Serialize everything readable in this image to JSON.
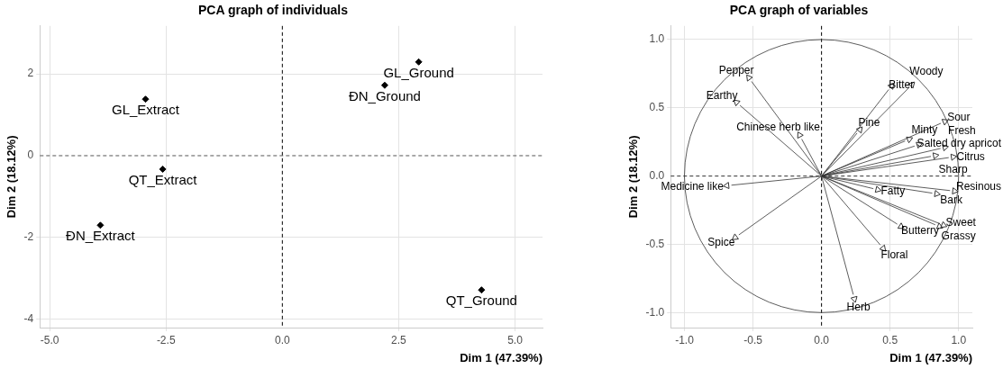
{
  "chart_data": [
    {
      "type": "scatter",
      "title": "PCA graph of individuals",
      "xlabel": "Dim 1 (47.39%)",
      "ylabel": "Dim 2 (18.12%)",
      "series": [
        {
          "color": "#000000",
          "x": [
            2.93,
            2.2,
            -2.94,
            -2.57,
            -3.91,
            4.28
          ],
          "values": [
            2.29,
            1.72,
            1.38,
            -0.33,
            -1.7,
            -3.28
          ]
        }
      ],
      "annotations": [
        {
          "text": "GL_Ground",
          "x": 2.93,
          "y": 2.29
        },
        {
          "text": "ĐN_Ground",
          "x": 2.2,
          "y": 1.72
        },
        {
          "text": "GL_Extract",
          "x": -2.94,
          "y": 1.38
        },
        {
          "text": "QT_Extract",
          "x": -2.57,
          "y": -0.33
        },
        {
          "text": "ĐN_Extract",
          "x": -3.91,
          "y": -1.7
        },
        {
          "text": "QT_Ground",
          "x": 4.28,
          "y": -3.28
        }
      ],
      "xlim": [
        -5.21,
        5.59
      ],
      "ylim": [
        -4.2,
        3.17
      ],
      "xticks": [
        {
          "value": -5,
          "label": "-5.0"
        },
        {
          "value": -2.5,
          "label": "-2.5"
        },
        {
          "value": 0,
          "label": "0.0"
        },
        {
          "value": 2.5,
          "label": "2.5"
        },
        {
          "value": 5,
          "label": "5.0"
        }
      ],
      "yticks": [
        -4,
        -2,
        0,
        2
      ],
      "ref_lines": [
        {
          "axis": "x",
          "value": 0,
          "line_style": "dashed",
          "color": "#000000"
        },
        {
          "axis": "y",
          "value": 0,
          "line_style": "dashed",
          "color": "#555555"
        }
      ],
      "grid": true,
      "marker": "diamond",
      "legend": false
    },
    {
      "type": "scatter",
      "title": "PCA graph of variables",
      "xlabel": "Dim 1 (47.39%)",
      "ylabel": "Dim 2 (18.12%)",
      "series": [
        {
          "color": "#333333",
          "x": [
            -0.53,
            -0.62,
            -0.16,
            -0.69,
            0.66,
            0.51,
            0.28,
            0.64,
            0.9,
            0.71,
            0.9,
            0.83,
            0.96,
            0.41,
            0.97,
            0.84,
            0.58,
            0.89,
            0.86,
            0.45,
            0.24,
            -0.63
          ],
          "values": [
            0.72,
            0.54,
            0.3,
            -0.07,
            0.67,
            0.66,
            0.34,
            0.27,
            0.4,
            0.23,
            0.21,
            0.15,
            0.14,
            -0.1,
            -0.11,
            -0.13,
            -0.37,
            -0.36,
            -0.37,
            -0.53,
            -0.9,
            -0.45
          ]
        }
      ],
      "annotations": [
        {
          "text": "Pepper",
          "x": -0.53,
          "y": 0.72
        },
        {
          "text": "Earthy",
          "x": -0.62,
          "y": 0.54
        },
        {
          "text": "Chinese herb like",
          "x": -0.16,
          "y": 0.3
        },
        {
          "text": "Medicine like",
          "x": -0.69,
          "y": -0.07
        },
        {
          "text": "Woody",
          "x": 0.66,
          "y": 0.67
        },
        {
          "text": "Bitter",
          "x": 0.51,
          "y": 0.66
        },
        {
          "text": "Pine",
          "x": 0.28,
          "y": 0.34
        },
        {
          "text": "Minty",
          "x": 0.64,
          "y": 0.27
        },
        {
          "text": "Sour",
          "x": 0.9,
          "y": 0.4
        },
        {
          "text": "Salted dry apricot",
          "x": 0.71,
          "y": 0.23
        },
        {
          "text": "Fresh",
          "x": 0.9,
          "y": 0.21
        },
        {
          "text": "Sharp",
          "x": 0.83,
          "y": 0.15
        },
        {
          "text": "Citrus",
          "x": 0.96,
          "y": 0.14
        },
        {
          "text": "Fatty",
          "x": 0.41,
          "y": -0.1
        },
        {
          "text": "Resinous",
          "x": 0.97,
          "y": -0.11
        },
        {
          "text": "Bark",
          "x": 0.84,
          "y": -0.13
        },
        {
          "text": "Butterry",
          "x": 0.58,
          "y": -0.37
        },
        {
          "text": "Sweet",
          "x": 0.89,
          "y": -0.36
        },
        {
          "text": "Grassy",
          "x": 0.86,
          "y": -0.37
        },
        {
          "text": "Floral",
          "x": 0.45,
          "y": -0.53
        },
        {
          "text": "Herb",
          "x": 0.24,
          "y": -0.9
        },
        {
          "text": "Spice",
          "x": -0.63,
          "y": -0.45
        }
      ],
      "xlim": [
        -1.1,
        1.1
      ],
      "ylim": [
        -1.11,
        1.1
      ],
      "xticks": [
        {
          "value": -1,
          "label": "-1.0"
        },
        {
          "value": -0.5,
          "label": "-0.5"
        },
        {
          "value": 0,
          "label": "0.0"
        },
        {
          "value": 0.5,
          "label": "0.5"
        },
        {
          "value": 1,
          "label": "1.0"
        }
      ],
      "yticks": [
        {
          "value": -1,
          "label": "-1.0"
        },
        {
          "value": -0.5,
          "label": "-0.5"
        },
        {
          "value": 0,
          "label": "0.0"
        },
        {
          "value": 0.5,
          "label": "0.5"
        },
        {
          "value": 1,
          "label": "1.0"
        }
      ],
      "ref_lines": [
        {
          "axis": "x",
          "value": 0,
          "line_style": "dashed",
          "color": "#000000"
        },
        {
          "axis": "y",
          "value": 0,
          "line_style": "dashed",
          "color": "#333333"
        }
      ],
      "grid": true,
      "marker": "triangle",
      "legend": false
    }
  ]
}
